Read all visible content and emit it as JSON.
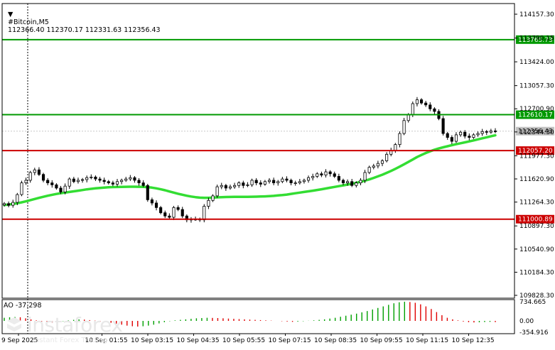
{
  "header": {
    "symbol": "#Bitcoin,M5",
    "ohlc": "112366.40 112370.17 112331.63 112356.43"
  },
  "indicator": {
    "title": "AO -37.298",
    "ticks": [
      "734.665",
      "0.00",
      "-354.916"
    ],
    "positive_color": "#00a000",
    "negative_color": "#e00000"
  },
  "watermark": {
    "brand": "instaforex",
    "tagline": "Instant Forex Trading"
  },
  "colors": {
    "candle": "#000000",
    "moving_average": "#33dd33",
    "support_resistance_green": "#009900",
    "support_resistance_red": "#cc0000",
    "grid": "#c8c8c8",
    "price_badge": "#c0c0c0"
  },
  "chart_data": {
    "type": "candlestick",
    "symbol": "#Bitcoin",
    "timeframe": "M5",
    "y_ticks": [
      "114157.30",
      "113790.15",
      "113424.00",
      "113057.30",
      "112700.90",
      "112344.30",
      "111977.30",
      "111620.90",
      "111264.30",
      "110897.30",
      "110540.90",
      "110184.30",
      "109828.30"
    ],
    "ylim": [
      109828.3,
      114157.3
    ],
    "x_ticks": [
      "9 Sep 2025",
      "10 Sep 01:55",
      "10 Sep 03:15",
      "10 Sep 04:35",
      "10 Sep 05:55",
      "10 Sep 07:15",
      "10 Sep 08:35",
      "10 Sep 09:55",
      "10 Sep 11:15",
      "10 Sep 12:35"
    ],
    "levels": [
      {
        "label": "113765.73",
        "value": 113765.73,
        "color": "green"
      },
      {
        "label": "112610.17",
        "value": 112610.17,
        "color": "green"
      },
      {
        "label": "112057.20",
        "value": 112057.2,
        "color": "red"
      },
      {
        "label": "111000.89",
        "value": 111000.89,
        "color": "red"
      }
    ],
    "current_price": {
      "label": "112356.43",
      "value": 112356.43
    },
    "close": [
      111240,
      111215,
      111260,
      111380,
      111560,
      111600,
      111720,
      111760,
      111690,
      111600,
      111560,
      111530,
      111480,
      111420,
      111510,
      111620,
      111580,
      111600,
      111610,
      111640,
      111650,
      111620,
      111600,
      111580,
      111560,
      111540,
      111580,
      111600,
      111620,
      111640,
      111600,
      111560,
      111520,
      111300,
      111250,
      111180,
      111100,
      111050,
      111030,
      111180,
      111150,
      111050,
      110990,
      111000,
      111000,
      110990,
      111200,
      111290,
      111360,
      111500,
      111520,
      111480,
      111500,
      111520,
      111560,
      111520,
      111530,
      111600,
      111560,
      111540,
      111580,
      111600,
      111560,
      111580,
      111620,
      111600,
      111560,
      111560,
      111580,
      111600,
      111640,
      111660,
      111700,
      111680,
      111730,
      111700,
      111660,
      111600,
      111560,
      111580,
      111520,
      111560,
      111600,
      111720,
      111800,
      111820,
      111860,
      111900,
      112000,
      112060,
      112150,
      112320,
      112520,
      112610,
      112780,
      112840,
      112790,
      112760,
      112700,
      112660,
      112550,
      112320,
      112260,
      112200,
      112300,
      112340,
      112280,
      112260,
      112300,
      112320,
      112350,
      112340,
      112360,
      112356
    ],
    "moving_average": [
      111220,
      111226,
      111235,
      111246,
      111260,
      111276,
      111294,
      111312,
      111329,
      111346,
      111362,
      111376,
      111389,
      111400,
      111410,
      111420,
      111430,
      111440,
      111450,
      111460,
      111468,
      111476,
      111482,
      111488,
      111492,
      111495,
      111497,
      111499,
      111500,
      111501,
      111501,
      111500,
      111498,
      111494,
      111487,
      111476,
      111462,
      111446,
      111428,
      111410,
      111393,
      111377,
      111362,
      111350,
      111340,
      111333,
      111330,
      111330,
      111333,
      111337,
      111340,
      111342,
      111343,
      111344,
      111345,
      111345,
      111346,
      111347,
      111348,
      111350,
      111352,
      111355,
      111360,
      111366,
      111372,
      111380,
      111390,
      111400,
      111410,
      111420,
      111430,
      111440,
      111451,
      111462,
      111474,
      111486,
      111498,
      111510,
      111522,
      111534,
      111546,
      111560,
      111576,
      111594,
      111614,
      111636,
      111660,
      111686,
      111714,
      111744,
      111776,
      111810,
      111846,
      111882,
      111920,
      111958,
      111990,
      112020,
      112046,
      112070,
      112090,
      112108,
      112124,
      112140,
      112156,
      112170,
      112184,
      112198,
      112214,
      112230,
      112246,
      112262,
      112278,
      112292
    ],
    "ao": [
      120,
      140,
      150,
      140,
      100,
      60,
      20,
      -20,
      -50,
      -60,
      -40,
      -10,
      20,
      40,
      60,
      50,
      30,
      10,
      -10,
      -30,
      -60,
      -90,
      -120,
      -150,
      -170,
      -180,
      -170,
      -150,
      -120,
      -80,
      -40,
      -10,
      20,
      40,
      60,
      80,
      100,
      110,
      120,
      115,
      110,
      100,
      90,
      80,
      70,
      60,
      50,
      40,
      30,
      20,
      10,
      0,
      -10,
      -20,
      -30,
      -20,
      -10,
      5,
      20,
      40,
      60,
      90,
      120,
      160,
      200,
      240,
      280,
      330,
      380,
      440,
      500,
      560,
      620,
      680,
      720,
      740,
      730,
      700,
      640,
      560,
      460,
      340,
      220,
      120,
      60,
      20,
      -20,
      -40,
      -50,
      -45,
      -35,
      -30,
      -37.3
    ]
  }
}
